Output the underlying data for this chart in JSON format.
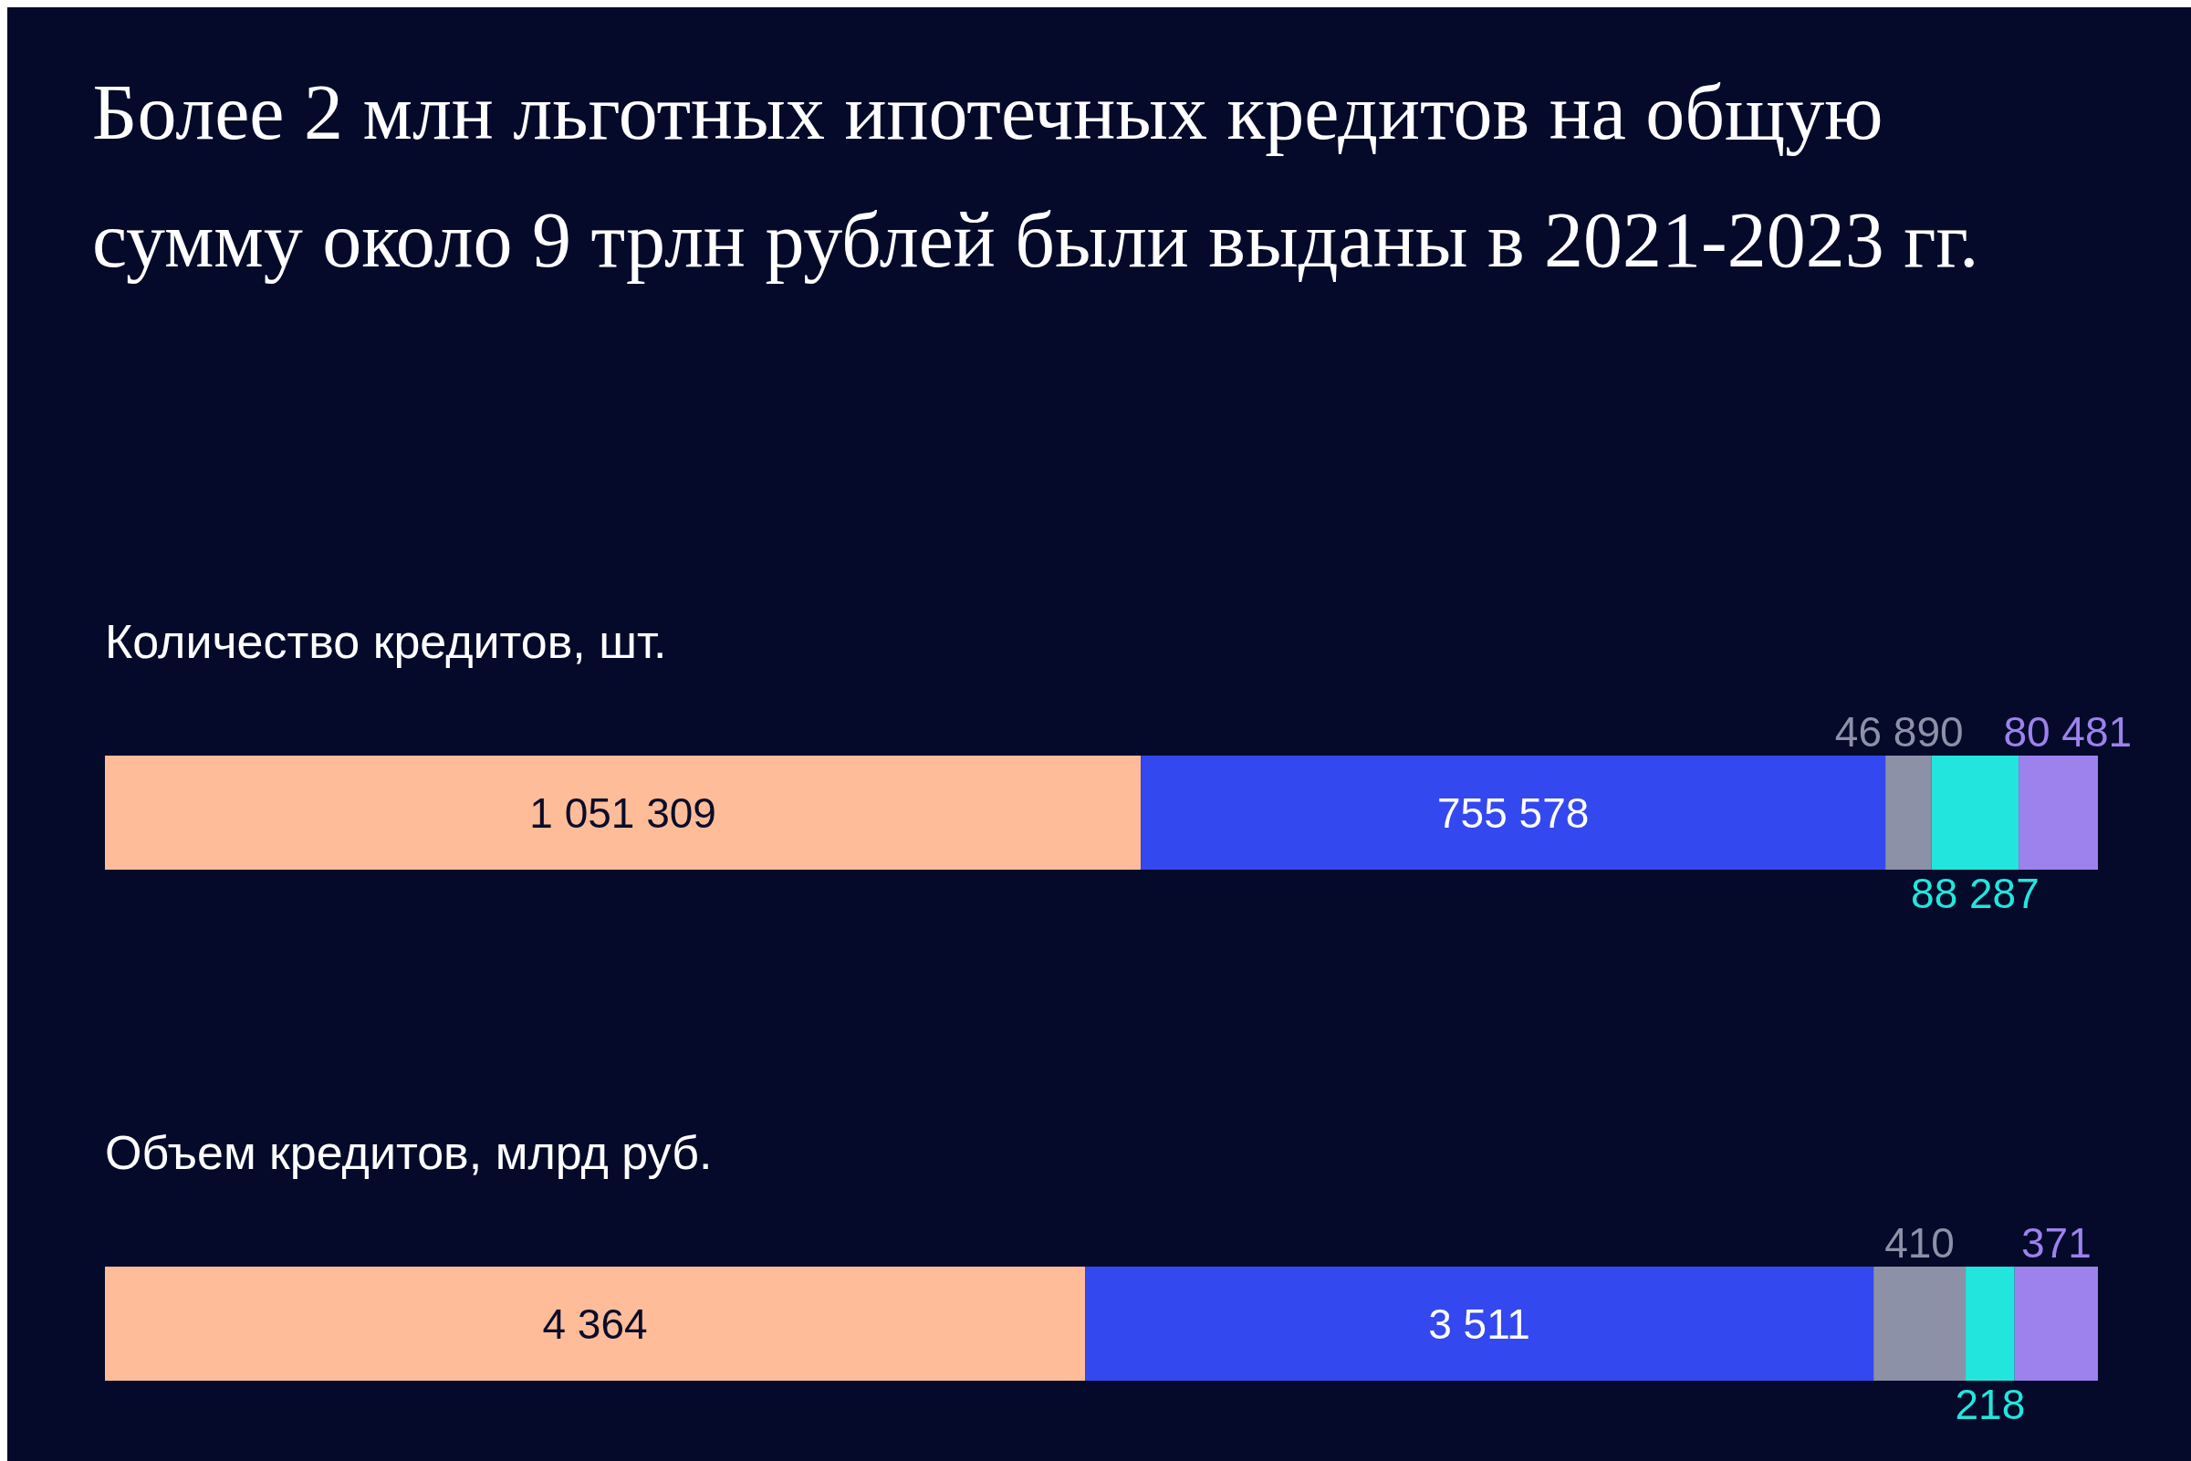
{
  "chart_data": [
    {
      "type": "bar",
      "orientation": "horizontal",
      "stacked": true,
      "title": "Более 2 млн льготных ипотечных кредитов на общую сумму около 9 трлн рублей были выданы в 2021-2023 гг.",
      "subtitle": "Количество кредитов, шт.",
      "categories": [
        null
      ],
      "series": [
        {
          "color": "#ffbc99",
          "values": [
            1051309
          ],
          "value_labels": [
            "1 051 309"
          ]
        },
        {
          "color": "#3448f0",
          "values": [
            755578
          ],
          "value_labels": [
            "755 578"
          ]
        },
        {
          "color": "#8c91a8",
          "values": [
            46890
          ],
          "value_labels": [
            "46 890"
          ]
        },
        {
          "color": "#22e6dd",
          "values": [
            88287
          ],
          "value_labels": [
            "88 287"
          ]
        },
        {
          "color": "#9d82ee",
          "values": [
            80481
          ],
          "value_labels": [
            "80 481"
          ]
        }
      ]
    },
    {
      "type": "bar",
      "orientation": "horizontal",
      "stacked": true,
      "subtitle": "Объем кредитов, млрд руб.",
      "categories": [
        null
      ],
      "series": [
        {
          "color": "#ffbc99",
          "values": [
            4364
          ],
          "value_labels": [
            "4 364"
          ]
        },
        {
          "color": "#3448f0",
          "values": [
            3511
          ],
          "value_labels": [
            "3 511"
          ]
        },
        {
          "color": "#8c91a8",
          "values": [
            410
          ],
          "value_labels": [
            "410"
          ]
        },
        {
          "color": "#22e6dd",
          "values": [
            218
          ],
          "value_labels": [
            "218"
          ]
        },
        {
          "color": "#9d82ee",
          "values": [
            371
          ],
          "value_labels": [
            "371"
          ]
        }
      ]
    }
  ]
}
